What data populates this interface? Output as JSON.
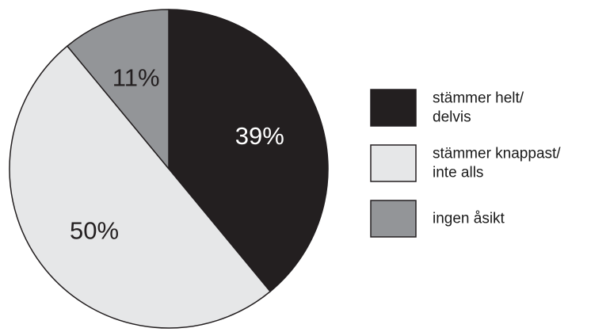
{
  "chart_data": {
    "type": "pie",
    "slices": [
      {
        "label": "stämmer helt/ delvis",
        "legend_lines": [
          "stämmer helt/",
          "delvis"
        ],
        "value": 39,
        "value_label": "39%",
        "color": "#231f20",
        "text_color": "#ffffff"
      },
      {
        "label": "stämmer knappast/ inte alls",
        "legend_lines": [
          "stämmer knappast/",
          "inte alls"
        ],
        "value": 50,
        "value_label": "50%",
        "color": "#e6e7e8",
        "text_color": "#231f20"
      },
      {
        "label": "ingen åsikt",
        "legend_lines": [
          "ingen åsikt"
        ],
        "value": 11,
        "value_label": "11%",
        "color": "#939598",
        "text_color": "#231f20"
      }
    ],
    "start_angle": "top",
    "direction": "clockwise",
    "legend_position": "right"
  }
}
